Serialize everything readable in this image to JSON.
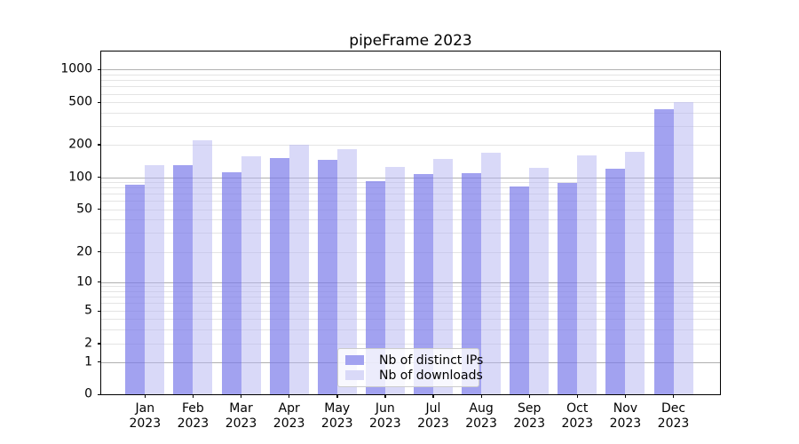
{
  "title": "pipeFrame 2023",
  "legend": {
    "items": [
      {
        "label": "Nb of distinct IPs",
        "color": "#a2a2f0"
      },
      {
        "label": "Nb of downloads",
        "color": "#d9d9f8"
      }
    ]
  },
  "y_axis": {
    "tick_labels": [
      "0",
      "1",
      "2",
      "5",
      "10",
      "20",
      "50",
      "100",
      "200",
      "500",
      "1000"
    ]
  },
  "x_axis": {
    "months": [
      "Jan",
      "Feb",
      "Mar",
      "Apr",
      "May",
      "Jun",
      "Jul",
      "Aug",
      "Sep",
      "Oct",
      "Nov",
      "Dec"
    ],
    "year": "2023"
  },
  "colors": {
    "distinct_ips": "#a2a2f0",
    "downloads": "#d9d9f8",
    "major_grid": "#b0b0b0",
    "minor_grid": "#e4e4e4"
  },
  "chart_data": {
    "type": "bar",
    "title": "pipeFrame 2023",
    "categories": [
      "Jan 2023",
      "Feb 2023",
      "Mar 2023",
      "Apr 2023",
      "May 2023",
      "Jun 2023",
      "Jul 2023",
      "Aug 2023",
      "Sep 2023",
      "Oct 2023",
      "Nov 2023",
      "Dec 2023"
    ],
    "series": [
      {
        "name": "Nb of distinct IPs",
        "values": [
          85,
          130,
          110,
          150,
          145,
          92,
          106,
          109,
          82,
          89,
          120,
          430
        ]
      },
      {
        "name": "Nb of downloads",
        "values": [
          130,
          220,
          155,
          200,
          182,
          125,
          148,
          167,
          122,
          160,
          170,
          500
        ]
      }
    ],
    "xlabel": "",
    "ylabel": "",
    "yscale": "symlog",
    "yticks": [
      0,
      1,
      2,
      5,
      10,
      20,
      50,
      100,
      200,
      500,
      1000
    ],
    "ylim": [
      0,
      1500
    ],
    "grid": true,
    "legend_position": "lower center"
  }
}
